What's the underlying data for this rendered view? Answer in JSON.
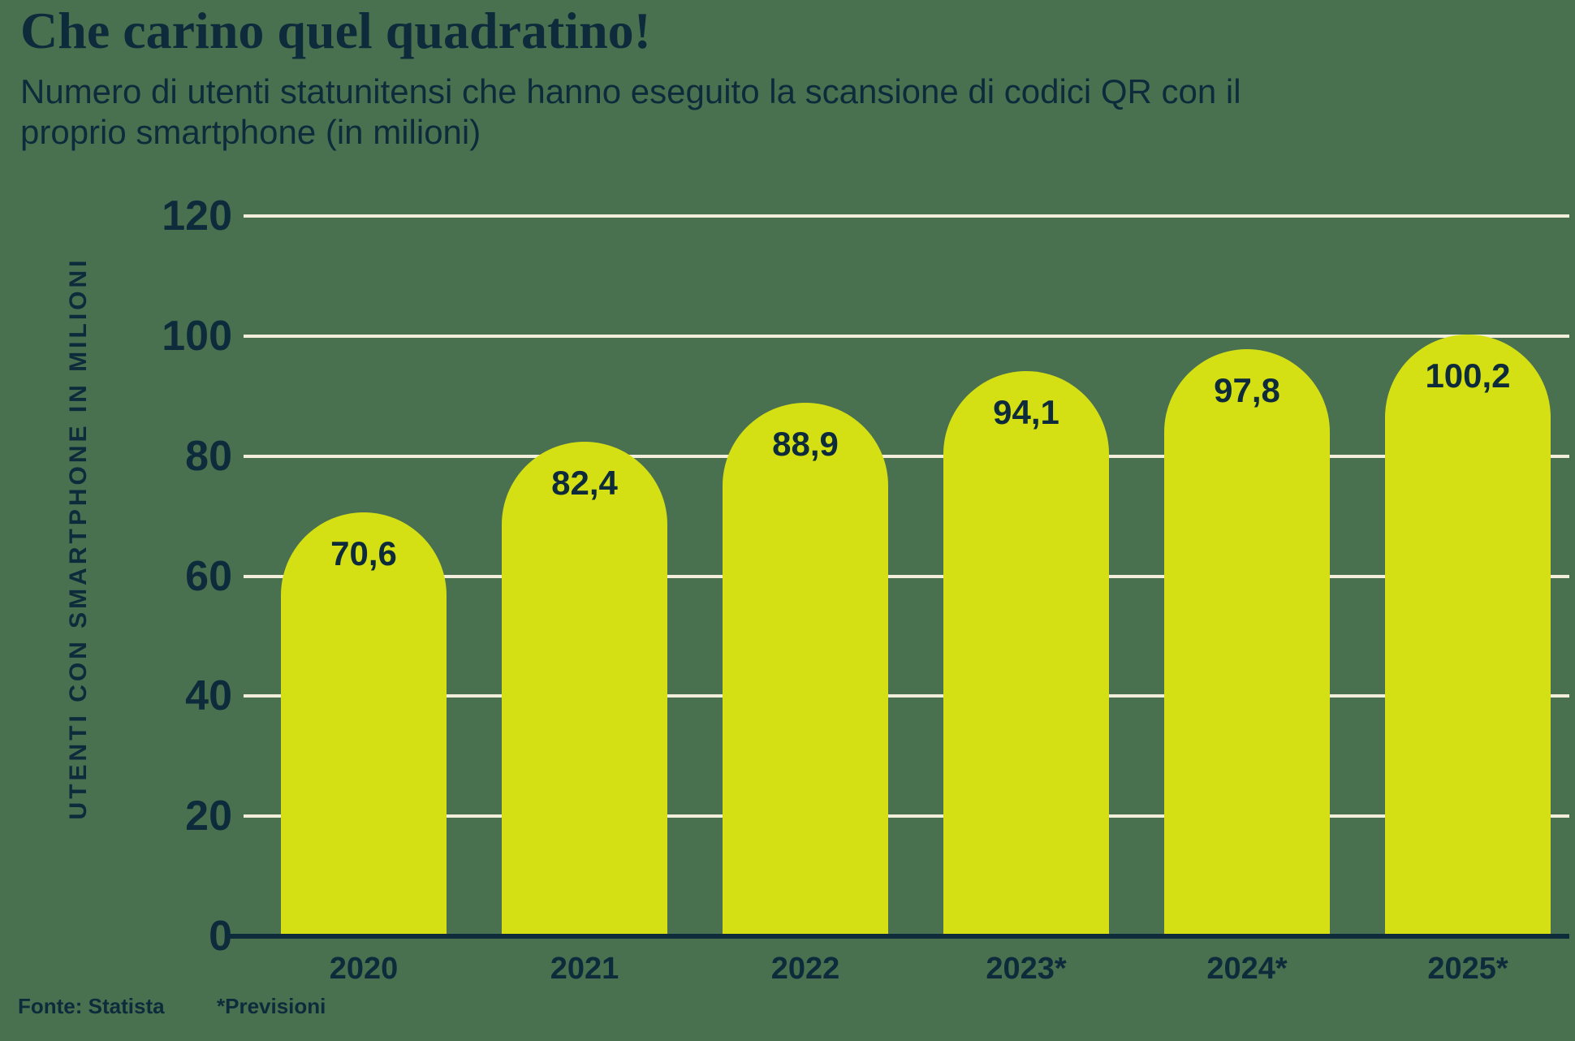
{
  "header": {
    "title": "Che carino quel quadratino!",
    "subtitle_lines": [
      "Numero di utenti statunitensi che hanno eseguito la scansione di codici QR con il",
      "proprio smartphone (in milioni)"
    ]
  },
  "footer": {
    "source": "Fonte: Statista",
    "note": "*Previsioni"
  },
  "colors": {
    "background": "#497150",
    "bar": "#d4e014",
    "text": "#0e2b3c",
    "gridline": "#f2eedb"
  },
  "chart_data": {
    "type": "bar",
    "title": "Che carino quel quadratino!",
    "subtitle": "Numero di utenti statunitensi che hanno eseguito la scansione di codici QR con il proprio smartphone (in milioni)",
    "categories": [
      "2020",
      "2021",
      "2022",
      "2023*",
      "2024*",
      "2025*"
    ],
    "values": [
      70.6,
      82.4,
      88.9,
      94.1,
      97.8,
      100.2
    ],
    "value_labels": [
      "70,6",
      "82,4",
      "88,9",
      "94,1",
      "97,8",
      "100,2"
    ],
    "xlabel": "",
    "ylabel": "UTENTI CON SMARTPHONE IN MILIONI",
    "ylim": [
      0,
      120
    ],
    "yticks": [
      0,
      20,
      40,
      60,
      80,
      100,
      120
    ],
    "grid": true,
    "legend": false,
    "source": "Fonte: Statista",
    "footnote": "*Previsioni"
  }
}
